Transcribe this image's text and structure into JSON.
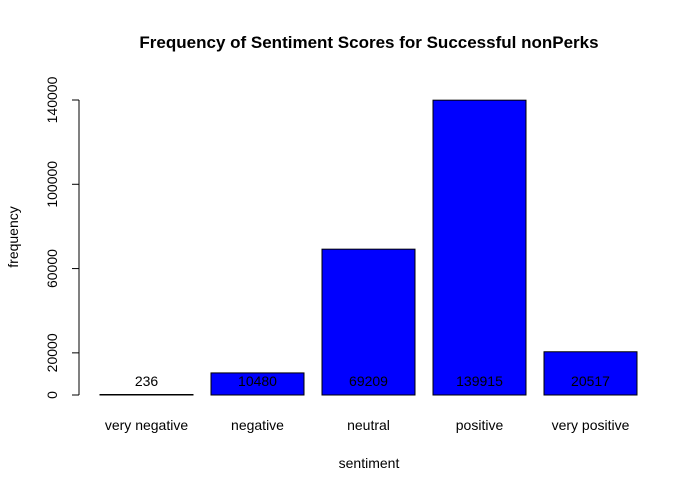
{
  "chart_data": {
    "type": "bar",
    "title": "Frequency of Sentiment Scores for Successful nonPerks",
    "xlabel": "sentiment",
    "ylabel": "frequency",
    "categories": [
      "very negative",
      "negative",
      "neutral",
      "positive",
      "very positive"
    ],
    "values": [
      236,
      10480,
      69209,
      139915,
      20517
    ],
    "data_labels": [
      "236",
      "10480",
      "69209",
      "139915",
      "20517"
    ],
    "yticks": [
      0,
      20000,
      60000,
      100000,
      140000
    ],
    "ytick_labels": [
      "0",
      "20000",
      "60000",
      "100000",
      "140000"
    ],
    "ylim": [
      0,
      140000
    ],
    "bar_color": "#0000ff",
    "grid": false,
    "legend": "none"
  }
}
